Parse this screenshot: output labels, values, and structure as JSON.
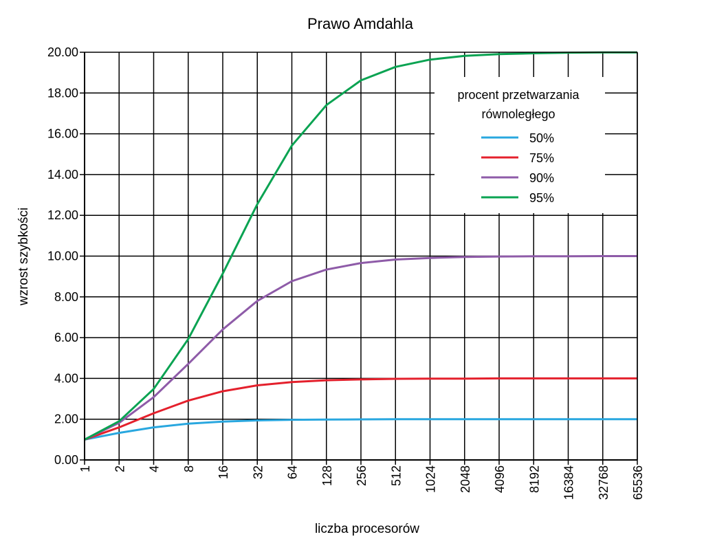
{
  "chart_data": {
    "type": "line",
    "title": "Prawo Amdahla",
    "xlabel": "liczba procesorów",
    "ylabel": "wzrost szybkości",
    "x_scale": "log2",
    "x": [
      "1",
      "2",
      "4",
      "8",
      "16",
      "32",
      "64",
      "128",
      "256",
      "512",
      "1024",
      "2048",
      "4096",
      "8192",
      "16384",
      "32768",
      "65536"
    ],
    "y_ticks": [
      "0.00",
      "2.00",
      "4.00",
      "6.00",
      "8.00",
      "10.00",
      "12.00",
      "14.00",
      "16.00",
      "18.00",
      "20.00"
    ],
    "ylim": [
      0,
      20
    ],
    "grid": true,
    "legend": {
      "title_lines": [
        "procent przetwarzania",
        "równoległego"
      ],
      "placement": "top-right"
    },
    "series": [
      {
        "name": "50%",
        "color": "#29a7df",
        "values": [
          1.0,
          1.33,
          1.6,
          1.78,
          1.88,
          1.94,
          1.97,
          1.98,
          1.99,
          2.0,
          2.0,
          2.0,
          2.0,
          2.0,
          2.0,
          2.0,
          2.0
        ]
      },
      {
        "name": "75%",
        "color": "#e4202c",
        "values": [
          1.0,
          1.6,
          2.29,
          2.91,
          3.37,
          3.66,
          3.82,
          3.91,
          3.95,
          3.98,
          3.99,
          3.99,
          4.0,
          4.0,
          4.0,
          4.0,
          4.0
        ]
      },
      {
        "name": "90%",
        "color": "#8e5ba8",
        "values": [
          1.0,
          1.82,
          3.08,
          4.71,
          6.4,
          7.8,
          8.77,
          9.34,
          9.66,
          9.83,
          9.91,
          9.96,
          9.98,
          9.99,
          9.99,
          10.0,
          10.0
        ]
      },
      {
        "name": "95%",
        "color": "#0aa352",
        "values": [
          1.0,
          1.9,
          3.48,
          5.93,
          9.14,
          12.55,
          15.42,
          17.41,
          18.62,
          19.28,
          19.64,
          19.82,
          19.91,
          19.95,
          19.98,
          19.99,
          19.99
        ]
      }
    ]
  }
}
